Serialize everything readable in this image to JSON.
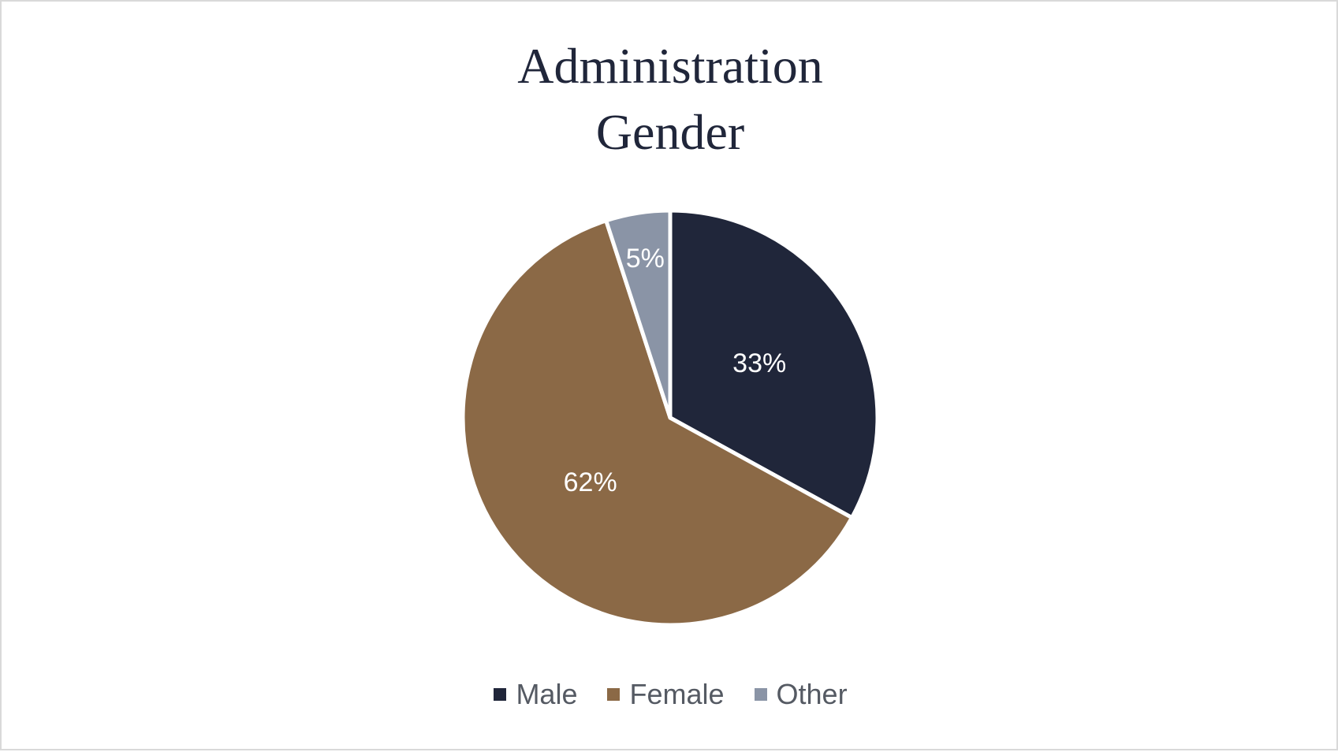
{
  "chart_data": {
    "type": "pie",
    "title": "Administration Gender",
    "categories": [
      "Male",
      "Female",
      "Other"
    ],
    "values": [
      33,
      62,
      5
    ],
    "value_labels": [
      "33%",
      "62%",
      "5%"
    ],
    "colors": [
      "#20263a",
      "#8b6946",
      "#8a94a6"
    ],
    "legend": "bottom"
  }
}
